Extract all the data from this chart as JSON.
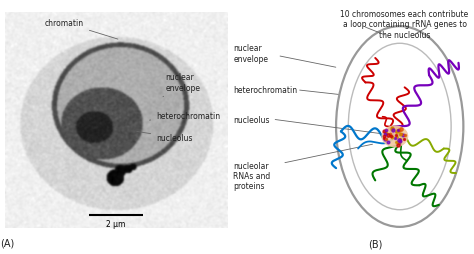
{
  "panel_a_label": "(A)",
  "panel_b_label": "(B)",
  "scale_bar_text": "2 μm",
  "top_text": "10 chromosomes each contribute\na loop containing rRNA genes to\nthe nucleolus",
  "label_chromatin": "chromatin",
  "label_nuclear_envelope": "nuclear\nenvelope",
  "label_heterochromatin": "heterochromatin",
  "label_nucleolus": "nucleolus",
  "label_nucleolar": "nucleolar\nRNAs and\nproteins",
  "text_color": "#222222",
  "red": "#cc0000",
  "purple": "#7700bb",
  "blue": "#0077cc",
  "green": "#007700",
  "ygreen": "#88aa00"
}
